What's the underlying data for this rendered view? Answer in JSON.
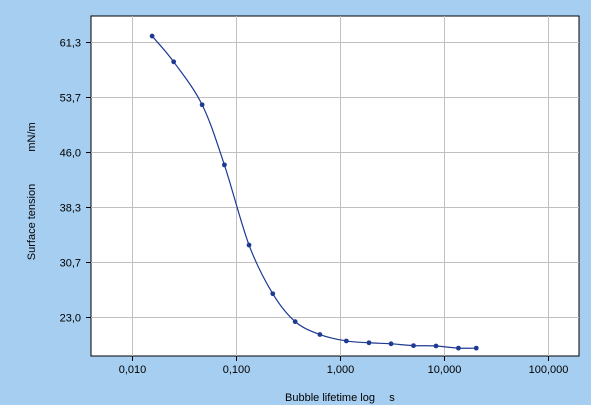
{
  "chart_data": {
    "type": "line",
    "xlabel": "Bubble lifetime log",
    "xunit": "s",
    "ylabel": "Surface tension",
    "yunit": "mN/m",
    "x_scale": "log",
    "xlim": [
      0.004,
      200
    ],
    "ylim": [
      17.5,
      65
    ],
    "x_ticks": [
      0.01,
      0.1,
      1,
      10,
      100
    ],
    "x_tick_labels": [
      "0,010",
      "0,100",
      "1,000",
      "10,000",
      "100,000"
    ],
    "y_ticks": [
      23.0,
      30.7,
      38.3,
      46.0,
      53.7,
      61.3
    ],
    "y_tick_labels": [
      "23,0",
      "30,7",
      "38,3",
      "46,0",
      "53,7",
      "61,3"
    ],
    "grid": true,
    "series": [
      {
        "color": "#1f3a93",
        "x": [
          0.0155,
          0.025,
          0.047,
          0.077,
          0.133,
          0.225,
          0.37,
          0.64,
          1.15,
          1.9,
          3.1,
          5.1,
          8.4,
          13.8,
          20.5
        ],
        "y": [
          62.2,
          58.6,
          52.6,
          44.2,
          33.0,
          26.2,
          22.3,
          20.5,
          19.6,
          19.35,
          19.2,
          18.95,
          18.9,
          18.6,
          18.6
        ]
      }
    ]
  }
}
